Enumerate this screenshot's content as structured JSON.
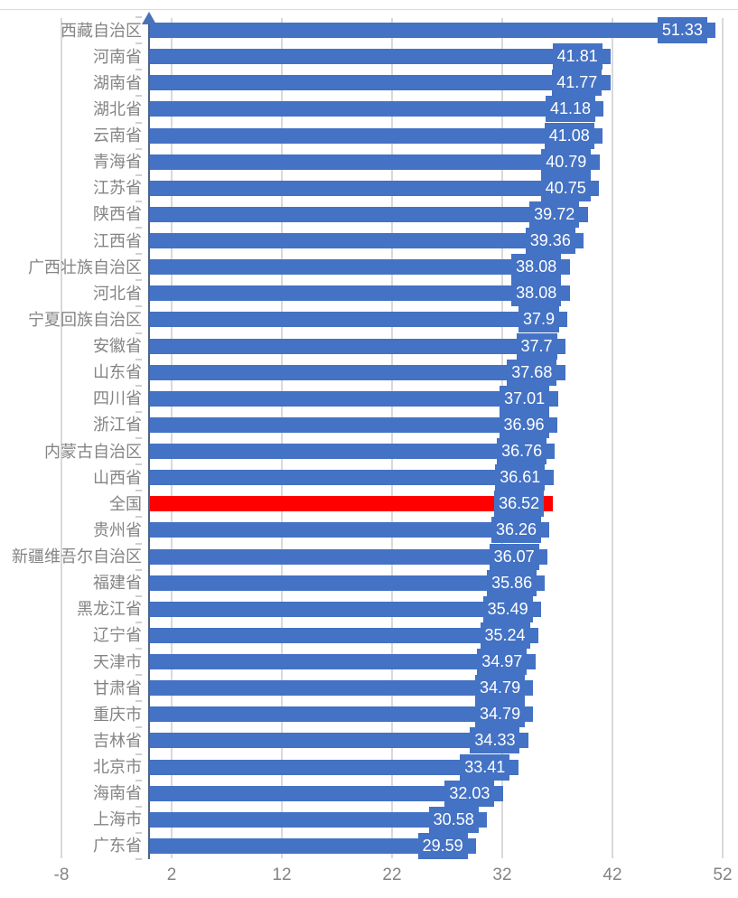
{
  "chart_data": {
    "type": "bar",
    "orientation": "horizontal",
    "title": "",
    "xlabel": "",
    "ylabel": "",
    "legend": "none",
    "grid": "vertical",
    "categories": [
      "西藏自治区",
      "河南省",
      "湖南省",
      "湖北省",
      "云南省",
      "青海省",
      "江苏省",
      "陕西省",
      "江西省",
      "广西壮族自治区",
      "河北省",
      "宁夏回族自治区",
      "安徽省",
      "山东省",
      "四川省",
      "浙江省",
      "内蒙古自治区",
      "山西省",
      "全国",
      "贵州省",
      "新疆维吾尔自治区",
      "福建省",
      "黑龙江省",
      "辽宁省",
      "天津市",
      "甘肃省",
      "重庆市",
      "吉林省",
      "北京市",
      "海南省",
      "上海市",
      "广东省"
    ],
    "values": [
      51.33,
      41.81,
      41.77,
      41.18,
      41.08,
      40.79,
      40.75,
      39.72,
      39.36,
      38.08,
      38.08,
      37.9,
      37.7,
      37.68,
      37.01,
      36.96,
      36.76,
      36.61,
      36.52,
      36.26,
      36.07,
      35.86,
      35.49,
      35.24,
      34.97,
      34.79,
      34.79,
      34.33,
      33.41,
      32.03,
      30.58,
      29.59
    ],
    "value_labels": [
      "51.33",
      "41.81",
      "41.77",
      "41.18",
      "41.08",
      "40.79",
      "40.75",
      "39.72",
      "39.36",
      "38.08",
      "38.08",
      "37.9",
      "37.7",
      "37.68",
      "37.01",
      "36.96",
      "36.76",
      "36.61",
      "36.52",
      "36.26",
      "36.07",
      "35.86",
      "35.49",
      "35.24",
      "34.97",
      "34.79",
      "34.79",
      "34.33",
      "33.41",
      "32.03",
      "30.58",
      "29.59"
    ],
    "highlight_category": "全国",
    "highlight_index": 18,
    "colors": {
      "bar": "#4472c4",
      "highlight_bar": "#ff0000",
      "label_box": "#4472c4",
      "label_text": "#ffffff",
      "axis_line": "#4b648a",
      "gridline": "#d9d9d9",
      "tick_text": "#848484"
    },
    "x_axis": {
      "min": -8,
      "max": 52,
      "tick_labels": [
        "-8",
        "2",
        "12",
        "22",
        "32",
        "42",
        "52"
      ],
      "tick_values": [
        -8,
        2,
        12,
        22,
        32,
        42,
        52
      ]
    }
  }
}
